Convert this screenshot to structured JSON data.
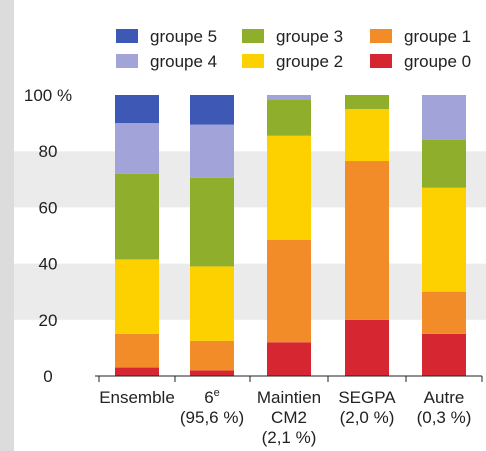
{
  "chart_data": {
    "type": "bar",
    "stacked": true,
    "categories": [
      {
        "lines": [
          "Ensemble"
        ],
        "superscript": ""
      },
      {
        "lines": [
          "6",
          "(95,6 %)"
        ],
        "superscript": "e"
      },
      {
        "lines": [
          "Maintien",
          "CM2",
          "(2,1 %)"
        ],
        "superscript": ""
      },
      {
        "lines": [
          "SEGPA",
          "(2,0 %)"
        ],
        "superscript": ""
      },
      {
        "lines": [
          "Autre",
          "(0,3 %)"
        ],
        "superscript": ""
      }
    ],
    "series": [
      {
        "name": "groupe 0",
        "color": "#d62631",
        "values": [
          3,
          2,
          12,
          20,
          15
        ]
      },
      {
        "name": "groupe 1",
        "color": "#f28c28",
        "values": [
          12,
          10.5,
          36.5,
          56.5,
          15
        ]
      },
      {
        "name": "groupe 2",
        "color": "#fdd000",
        "values": [
          26.5,
          26.5,
          37,
          18.5,
          37
        ]
      },
      {
        "name": "groupe 3",
        "color": "#8fae2c",
        "values": [
          30.5,
          31.5,
          13,
          5,
          17
        ]
      },
      {
        "name": "groupe 4",
        "color": "#a2a4d9",
        "values": [
          18,
          19,
          1.5,
          0,
          16
        ]
      },
      {
        "name": "groupe 5",
        "color": "#3e58b6",
        "values": [
          10,
          10.5,
          0,
          0,
          0
        ]
      }
    ],
    "legend_order": [
      "groupe 5",
      "groupe 3",
      "groupe 1",
      "groupe 4",
      "groupe 2",
      "groupe 0"
    ],
    "yticks": [
      {
        "value": 0,
        "label": "0"
      },
      {
        "value": 20,
        "label": "20"
      },
      {
        "value": 40,
        "label": "40"
      },
      {
        "value": 60,
        "label": "60"
      },
      {
        "value": 80,
        "label": "80"
      },
      {
        "value": 100,
        "label": "100 %"
      }
    ],
    "ylim": [
      0,
      100
    ],
    "legend_position": "top",
    "band_colors": [
      "#ffffff",
      "#ebebeb"
    ]
  }
}
